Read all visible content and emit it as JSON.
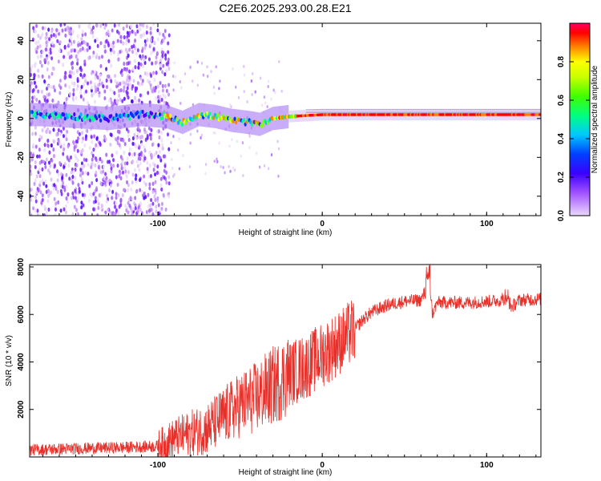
{
  "chart_data": [
    {
      "type": "heatmap",
      "title": "C2E6.2025.293.00.28.E21",
      "xlabel": "Height of straight line (km)",
      "ylabel": "Frequency (Hz)",
      "xlim": [
        -178,
        133
      ],
      "ylim": [
        -50,
        49
      ],
      "xticks": [
        -100,
        0,
        100
      ],
      "yticks": [
        -40,
        -20,
        0,
        20,
        40
      ],
      "colorbar": {
        "label": "Normalized spectral amplitude",
        "range": [
          0,
          1
        ],
        "ticks": [
          0.0,
          0.2,
          0.4,
          0.6,
          0.8
        ],
        "colors": [
          "#e8dcf8",
          "#9b4dff",
          "#0000ff",
          "#00ccff",
          "#00ff66",
          "#99ff00",
          "#ffff00",
          "#ff8800",
          "#ff0000",
          "#ff0066"
        ]
      },
      "ridge": [
        {
          "x": -170,
          "f": 2
        },
        {
          "x": -150,
          "f": 1
        },
        {
          "x": -130,
          "f": 0
        },
        {
          "x": -110,
          "f": 2
        },
        {
          "x": -95,
          "f": 1
        },
        {
          "x": -85,
          "f": -2
        },
        {
          "x": -75,
          "f": 2
        },
        {
          "x": -65,
          "f": 1
        },
        {
          "x": -55,
          "f": -1
        },
        {
          "x": -45,
          "f": -2
        },
        {
          "x": -38,
          "f": -3
        },
        {
          "x": -30,
          "f": 0
        },
        {
          "x": -20,
          "f": 1
        },
        {
          "x": 0,
          "f": 2
        },
        {
          "x": 50,
          "f": 2
        },
        {
          "x": 133,
          "f": 2
        }
      ]
    },
    {
      "type": "line",
      "xlabel": "Height of straight line (km)",
      "ylabel": "SNR (10 * v/v)",
      "xlim": [
        -178,
        133
      ],
      "ylim": [
        0,
        8100
      ],
      "xticks": [
        -100,
        0,
        100
      ],
      "yticks": [
        2000,
        4000,
        6000,
        8000
      ],
      "series": [
        {
          "name": "SNR",
          "color": "#e8302a",
          "x": [
            -178,
            -150,
            -120,
            -100,
            -90,
            -80,
            -70,
            -60,
            -50,
            -40,
            -30,
            -20,
            -10,
            0,
            10,
            20,
            25,
            30,
            40,
            50,
            60,
            63,
            65,
            67,
            70,
            80,
            90,
            100,
            110,
            112,
            115,
            120,
            133
          ],
          "y": [
            300,
            350,
            400,
            450,
            800,
            1000,
            1200,
            1700,
            2200,
            2500,
            3000,
            3500,
            3800,
            4300,
            4800,
            5400,
            5800,
            6100,
            6400,
            6550,
            6600,
            7000,
            7700,
            6000,
            6500,
            6500,
            6500,
            6550,
            6600,
            6900,
            6300,
            6600,
            6650
          ]
        }
      ]
    }
  ]
}
